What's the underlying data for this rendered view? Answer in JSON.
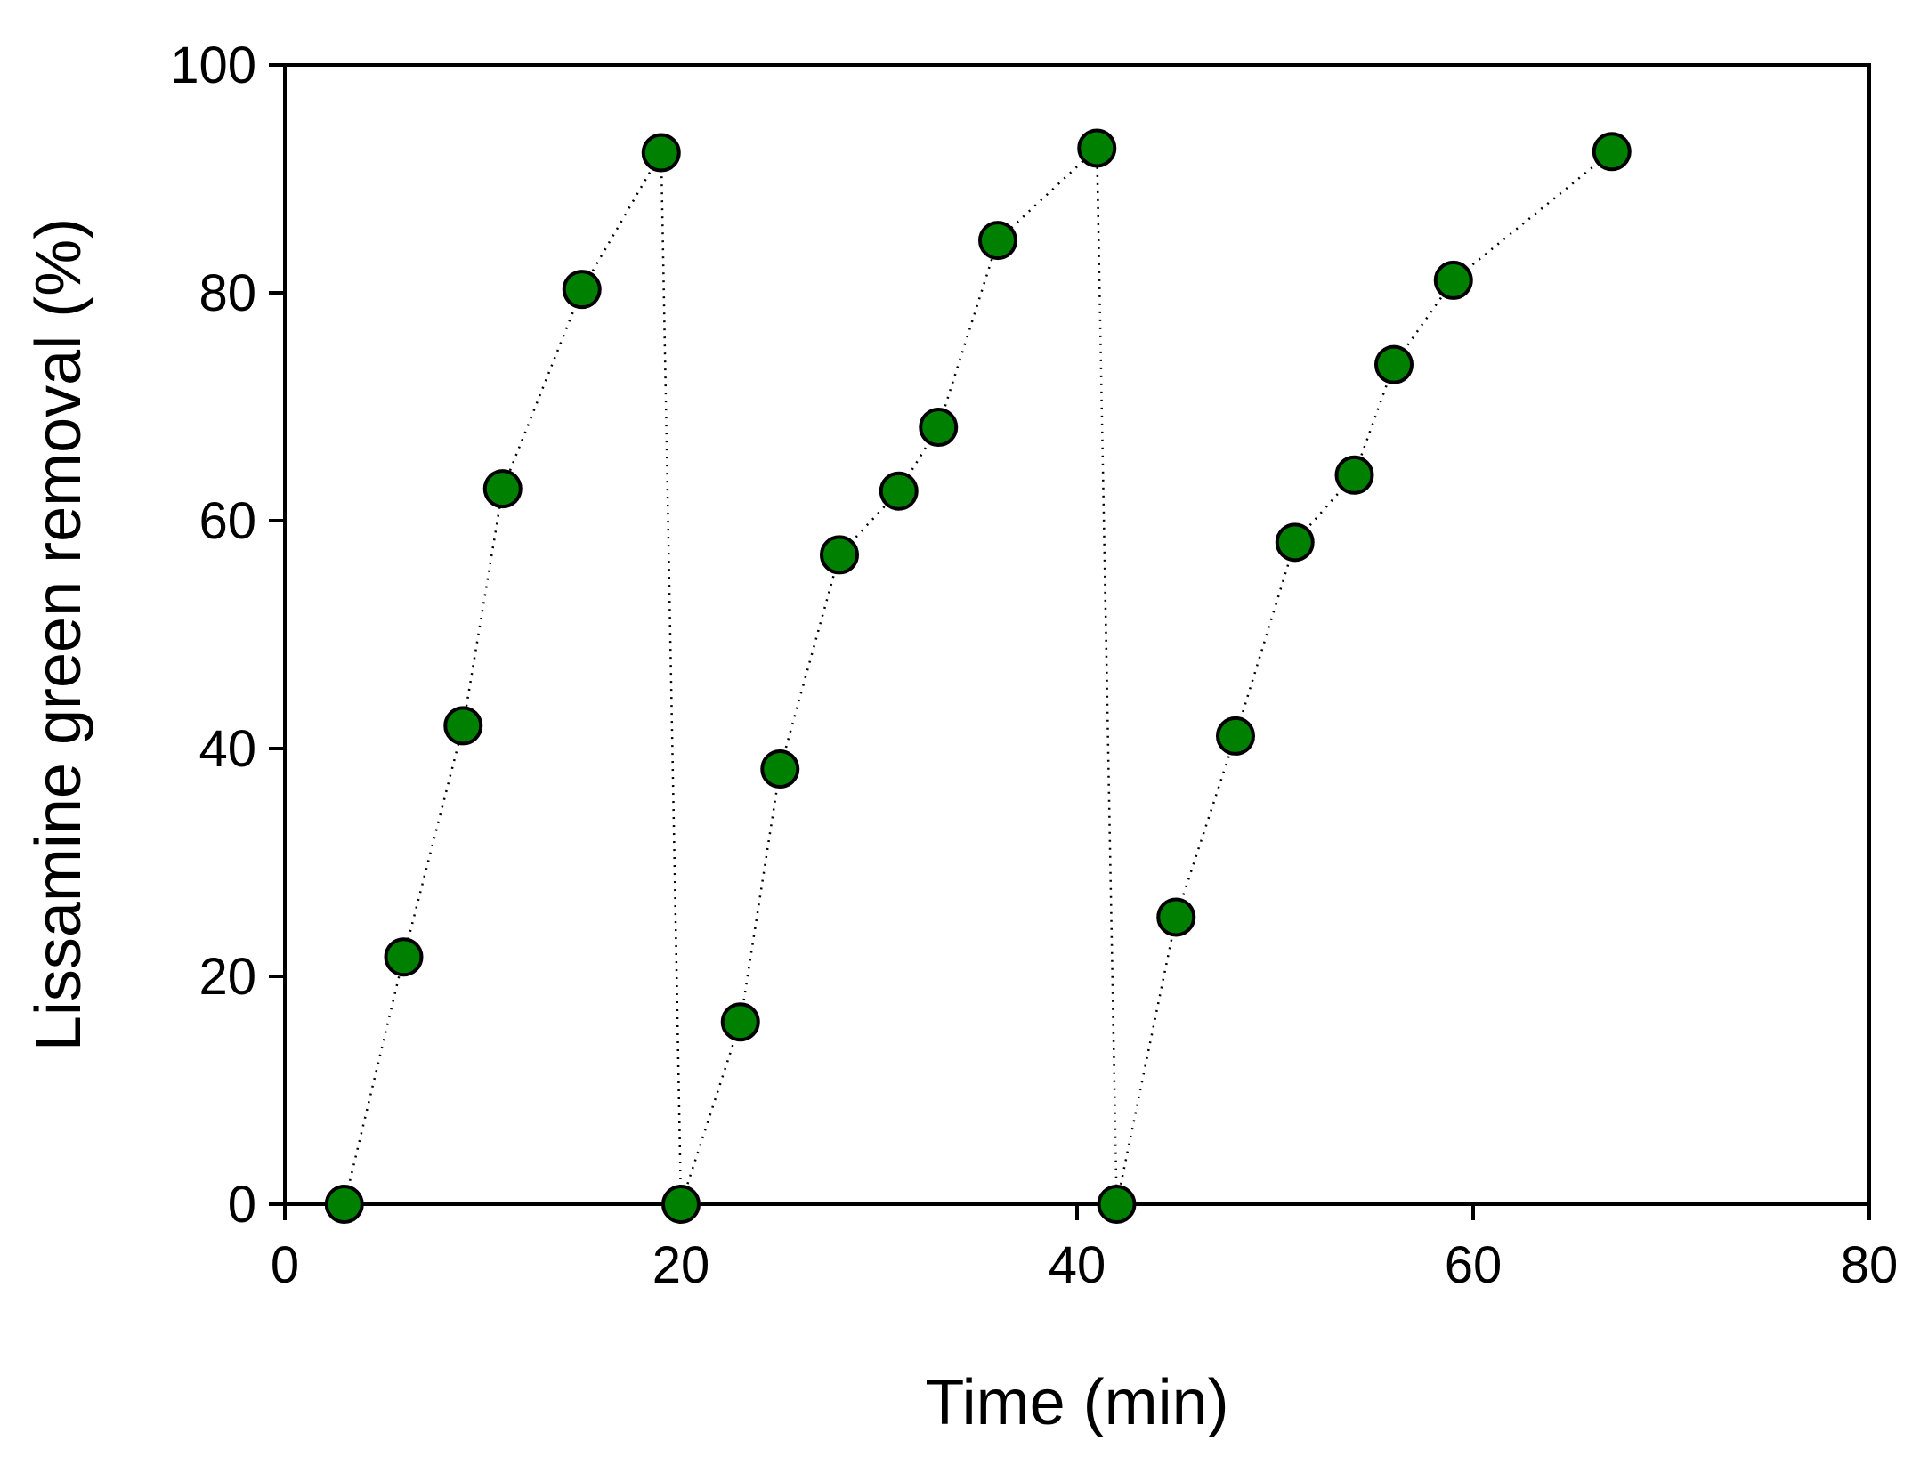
{
  "chart_data": {
    "type": "scatter",
    "title": "",
    "xlabel": "Time (min)",
    "ylabel": "Lissamine green removal (%)",
    "xlim": [
      0,
      80
    ],
    "ylim": [
      0,
      100
    ],
    "xticks": [
      0,
      20,
      40,
      60,
      80
    ],
    "yticks": [
      0,
      20,
      40,
      60,
      80,
      100
    ],
    "grid": false,
    "marker_color": "#008000",
    "marker_edge_color": "#000000",
    "line_style": "dotted",
    "points": [
      {
        "x": 3,
        "y": 0
      },
      {
        "x": 6,
        "y": 21.7
      },
      {
        "x": 9,
        "y": 42
      },
      {
        "x": 11,
        "y": 62.8
      },
      {
        "x": 15,
        "y": 80.3
      },
      {
        "x": 19,
        "y": 92.3
      },
      {
        "x": 20,
        "y": 0
      },
      {
        "x": 23,
        "y": 16
      },
      {
        "x": 25,
        "y": 38.2
      },
      {
        "x": 28,
        "y": 57
      },
      {
        "x": 31,
        "y": 62.6
      },
      {
        "x": 33,
        "y": 68.2
      },
      {
        "x": 36,
        "y": 84.6
      },
      {
        "x": 41,
        "y": 92.7
      },
      {
        "x": 42,
        "y": 0
      },
      {
        "x": 45,
        "y": 25.2
      },
      {
        "x": 48,
        "y": 41.1
      },
      {
        "x": 51,
        "y": 58.1
      },
      {
        "x": 54,
        "y": 64
      },
      {
        "x": 56,
        "y": 73.7
      },
      {
        "x": 59,
        "y": 81.1
      },
      {
        "x": 67,
        "y": 92.4
      }
    ]
  }
}
